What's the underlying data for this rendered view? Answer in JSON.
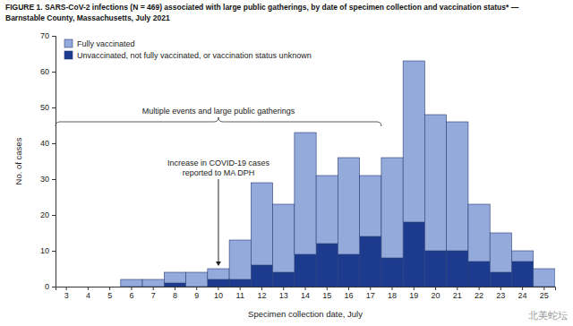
{
  "chart_data": {
    "type": "bar",
    "title": [
      "FIGURE 1. SARS-CoV-2 infections (N = 469) associated with large public gatherings, by date of specimen collection and vaccination status* —",
      "Barnstable County, Massachusetts, July 2021"
    ],
    "x_label": "Specimen collection date, July",
    "y_label": "No. of cases",
    "categories": [
      "3",
      "4",
      "5",
      "6",
      "7",
      "8",
      "9",
      "10",
      "11",
      "12",
      "13",
      "14",
      "15",
      "16",
      "17",
      "18",
      "19",
      "20",
      "21",
      "22",
      "23",
      "24",
      "25"
    ],
    "series": [
      {
        "name": "Fully vaccinated",
        "color": "#93aadb",
        "values": [
          0,
          0,
          0,
          2,
          2,
          3,
          4,
          3,
          11,
          23,
          19,
          34,
          19,
          27,
          17,
          28,
          45,
          38,
          36,
          16,
          11,
          3,
          5
        ]
      },
      {
        "name": "Unvaccinated, not fully vaccinated, or vaccination status unknown",
        "color": "#1c3b8e",
        "values": [
          0,
          0,
          0,
          0,
          0,
          1,
          0,
          2,
          2,
          6,
          4,
          9,
          12,
          9,
          14,
          8,
          18,
          10,
          10,
          7,
          4,
          7,
          0
        ]
      }
    ],
    "stacked": true,
    "ylim": [
      0,
      70
    ],
    "yticks": [
      0,
      10,
      20,
      30,
      40,
      50,
      60,
      70
    ],
    "grid": false,
    "legend": "upper left",
    "annotations": [
      {
        "text": "Multiple events and large public gatherings",
        "from": "3",
        "to": "17"
      },
      {
        "text": [
          "Increase in COVID-19 cases",
          "reported to MA DPH"
        ],
        "at": "10"
      },
      {
        "text": "北美蛇坛"
      }
    ]
  }
}
